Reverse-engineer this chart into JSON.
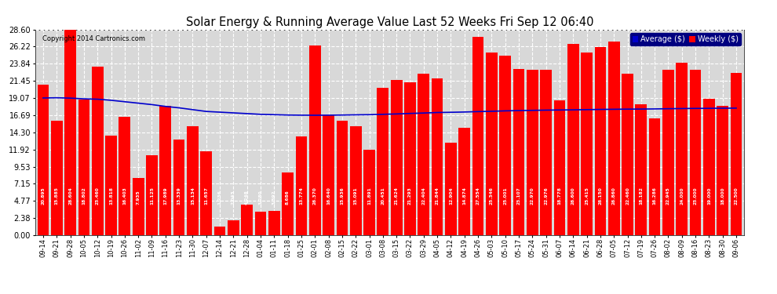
{
  "title": "Solar Energy & Running Average Value Last 52 Weeks Fri Sep 12 06:40",
  "copyright": "Copyright 2014 Cartronics.com",
  "bar_color": "#ff0000",
  "avg_line_color": "#0000cc",
  "background_color": "#ffffff",
  "plot_bg_color": "#d8d8d8",
  "grid_color": "#ffffff",
  "ylim": [
    0,
    28.6
  ],
  "yticks": [
    0.0,
    2.38,
    4.77,
    7.15,
    9.53,
    11.92,
    14.3,
    16.69,
    19.07,
    21.45,
    23.84,
    26.22,
    28.6
  ],
  "categories": [
    "09-14",
    "09-21",
    "09-28",
    "10-05",
    "10-12",
    "10-19",
    "10-26",
    "11-02",
    "11-09",
    "11-16",
    "11-23",
    "11-30",
    "12-07",
    "12-14",
    "12-21",
    "12-28",
    "01-04",
    "01-11",
    "01-18",
    "01-25",
    "02-01",
    "02-08",
    "02-15",
    "02-22",
    "03-01",
    "03-08",
    "03-15",
    "03-22",
    "03-29",
    "04-05",
    "04-12",
    "04-19",
    "04-26",
    "05-03",
    "05-10",
    "05-17",
    "05-24",
    "05-31",
    "06-07",
    "06-14",
    "06-21",
    "06-28",
    "07-05",
    "07-12",
    "07-19",
    "07-26",
    "08-02",
    "08-09",
    "08-16",
    "08-23",
    "08-30",
    "09-06"
  ],
  "values": [
    20.895,
    15.885,
    28.604,
    18.802,
    23.46,
    13.818,
    16.403,
    7.935,
    11.125,
    17.989,
    13.339,
    15.134,
    11.657,
    1.236,
    2.043,
    4.248,
    3.28,
    3.392,
    8.686,
    13.774,
    26.37,
    16.64,
    15.936,
    15.091,
    11.891,
    20.451,
    21.624,
    21.293,
    22.404,
    21.844,
    12.904,
    14.874,
    27.554,
    25.346,
    25.001,
    23.107,
    22.97,
    22.976,
    18.778,
    26.6,
    25.415,
    26.15,
    26.86,
    22.46,
    18.182,
    16.286,
    22.945,
    24.0,
    23.0,
    19.0,
    18.0,
    22.5
  ],
  "avg_values": [
    19.07,
    19.1,
    19.05,
    18.95,
    18.9,
    18.75,
    18.55,
    18.35,
    18.15,
    17.9,
    17.7,
    17.45,
    17.2,
    17.1,
    17.0,
    16.9,
    16.8,
    16.75,
    16.7,
    16.68,
    16.67,
    16.68,
    16.7,
    16.73,
    16.75,
    16.8,
    16.85,
    16.92,
    16.98,
    17.05,
    17.08,
    17.12,
    17.18,
    17.22,
    17.28,
    17.32,
    17.35,
    17.38,
    17.4,
    17.42,
    17.45,
    17.48,
    17.5,
    17.52,
    17.53,
    17.55,
    17.58,
    17.6,
    17.62,
    17.63,
    17.65,
    17.66
  ],
  "legend_avg_color": "#0000cc",
  "legend_weekly_color": "#ff0000",
  "legend_avg_label": "Average ($)",
  "legend_weekly_label": "Weekly ($)"
}
